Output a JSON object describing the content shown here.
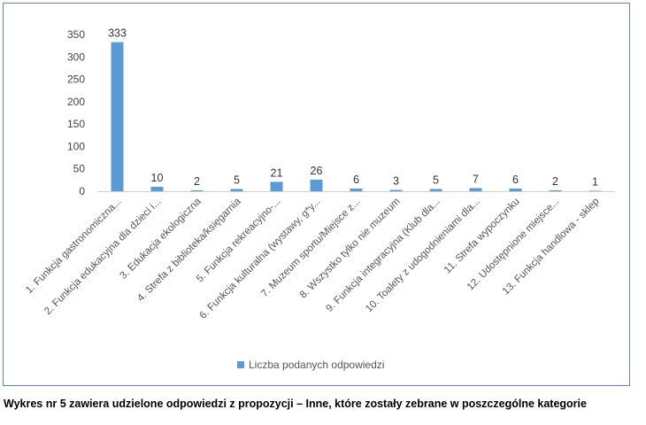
{
  "chart_data": {
    "type": "bar",
    "categories": [
      "1. Funkcja gastronomiczna...",
      "2. Funkcja edukacyjna dla dzieci i...",
      "3. Edukacja ekologiczna",
      "4. Strefa z biblioteka/księgarnia",
      "5. Funkcja rekreacyjno-...",
      "6. Funkcja kulturalna (wystawy, g*y...",
      "7. Muzeum sportu/Miejsce z...",
      "8. Wszystko tylko nie muzeum",
      "9. Funkcja integracyjna (Klub dla...",
      "10. Toalety z udogodnieniami dla...",
      "11. Strefa wypoczynku",
      "12. Udostępnione miejsce...",
      "13. Funkcja handlowa - sklep"
    ],
    "series": [
      {
        "name": "Liczba podanych odpowiedzi",
        "values": [
          333,
          10,
          2,
          5,
          21,
          26,
          6,
          3,
          5,
          7,
          6,
          2,
          1
        ]
      }
    ],
    "y_ticks": [
      "0",
      "50",
      "100",
      "150",
      "200",
      "250",
      "300",
      "350"
    ],
    "ylim": [
      0,
      350
    ],
    "grid": false,
    "legend": "bottom-center",
    "colors": {
      "bar": "#5b9bd5",
      "frame": "#5b87c7",
      "axis": "#d0d0d0"
    }
  },
  "caption": "Wykres nr 5 zawiera udzielone odpowiedzi z propozycji – Inne, które zostały zebrane w poszczególne kategorie"
}
